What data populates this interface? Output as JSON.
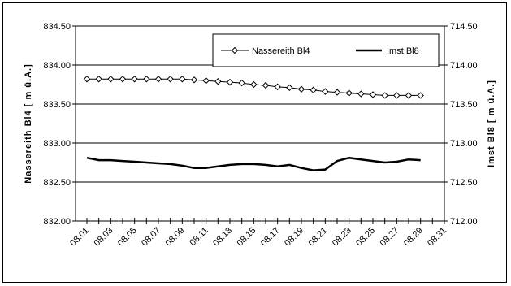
{
  "chart_data": {
    "type": "line",
    "ylabel": "Nassereith Bl4  [ m ü.A.]",
    "y2label": "Imst Bl8  [ m ü.A.]",
    "ylim": [
      832.0,
      834.5
    ],
    "y2lim": [
      712.0,
      714.5
    ],
    "y_ticks": [
      "832.00",
      "832.50",
      "833.00",
      "833.50",
      "834.00",
      "834.50"
    ],
    "y2_ticks": [
      "712.00",
      "712.50",
      "713.00",
      "713.50",
      "714.00",
      "714.50"
    ],
    "x_ticks": [
      "08.01",
      "08.03",
      "08.05",
      "08.07",
      "08.09",
      "08.11",
      "08.13",
      "08.15",
      "08.17",
      "08.19",
      "08.21",
      "08.23",
      "08.25",
      "08.27",
      "08.29",
      "08.31"
    ],
    "x": [
      "08.01",
      "08.02",
      "08.03",
      "08.04",
      "08.05",
      "08.06",
      "08.07",
      "08.08",
      "08.09",
      "08.10",
      "08.11",
      "08.12",
      "08.13",
      "08.14",
      "08.15",
      "08.16",
      "08.17",
      "08.18",
      "08.19",
      "08.20",
      "08.21",
      "08.22",
      "08.23",
      "08.24",
      "08.25",
      "08.26",
      "08.27",
      "08.28",
      "08.29"
    ],
    "grid": true,
    "legend_position": "top-right",
    "series": [
      {
        "name": "Nassereith Bl4",
        "axis": "left",
        "marker": "diamond-open",
        "color": "#000000",
        "values": [
          833.82,
          833.82,
          833.82,
          833.82,
          833.82,
          833.82,
          833.82,
          833.82,
          833.82,
          833.81,
          833.8,
          833.79,
          833.78,
          833.77,
          833.75,
          833.74,
          833.72,
          833.71,
          833.69,
          833.68,
          833.66,
          833.65,
          833.64,
          833.63,
          833.62,
          833.61,
          833.61,
          833.61,
          833.61
        ]
      },
      {
        "name": "Imst Bl8",
        "axis": "right",
        "marker": "none",
        "color": "#000000",
        "values": [
          712.81,
          712.78,
          712.78,
          712.77,
          712.76,
          712.75,
          712.74,
          712.73,
          712.71,
          712.68,
          712.68,
          712.7,
          712.72,
          712.73,
          712.73,
          712.72,
          712.7,
          712.72,
          712.68,
          712.65,
          712.66,
          712.77,
          712.81,
          712.79,
          712.77,
          712.75,
          712.76,
          712.79,
          712.78
        ]
      }
    ]
  }
}
